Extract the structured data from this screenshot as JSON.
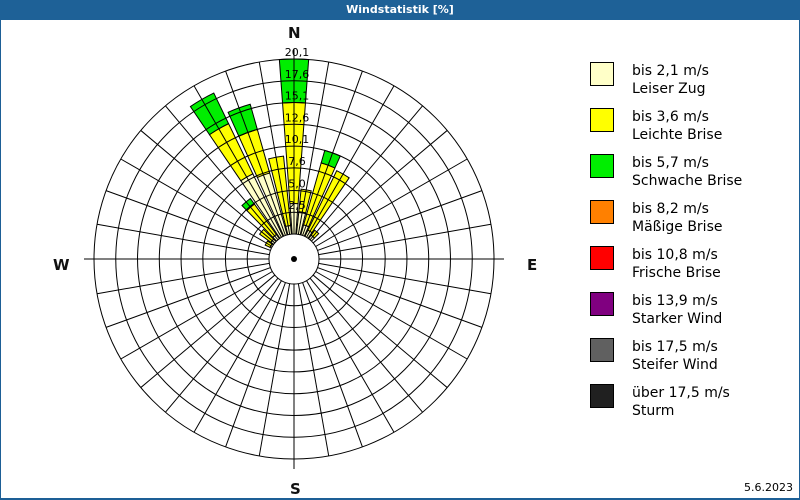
{
  "window": {
    "title": "Windstatistik [%]"
  },
  "compass": {
    "n": "N",
    "e": "E",
    "s": "S",
    "w": "W"
  },
  "date": "5.6.2023",
  "legend": [
    {
      "speed": "bis 2,1 m/s",
      "name": "Leiser Zug",
      "color": "#ffffc8"
    },
    {
      "speed": "bis 3,6 m/s",
      "name": "Leichte Brise",
      "color": "#ffff00"
    },
    {
      "speed": "bis 5,7 m/s",
      "name": "Schwache Brise",
      "color": "#00ee00"
    },
    {
      "speed": "bis 8,2 m/s",
      "name": "Mäßige Brise",
      "color": "#ff8000"
    },
    {
      "speed": "bis 10,8 m/s",
      "name": "Frische Brise",
      "color": "#ff0000"
    },
    {
      "speed": "bis 13,9 m/s",
      "name": "Starker Wind",
      "color": "#800080"
    },
    {
      "speed": "bis 17,5 m/s",
      "name": "Steifer Wind",
      "color": "#606060"
    },
    {
      "speed": "über 17,5 m/s",
      "name": "Sturm",
      "color": "#202020"
    }
  ],
  "chart_data": {
    "type": "wind-rose",
    "title": "Windstatistik [%]",
    "ring_labels": [
      "2,5",
      "5,0",
      "7,6",
      "10,1",
      "12,6",
      "15,1",
      "17,6",
      "20,1"
    ],
    "ring_values": [
      2.5,
      5.0,
      7.6,
      10.1,
      12.6,
      15.1,
      17.6,
      20.1
    ],
    "max": 20.1,
    "directions_deg": 36,
    "series_names": [
      "bis 2,1 m/s",
      "bis 3,6 m/s",
      "bis 5,7 m/s",
      "bis 8,2 m/s",
      "bis 10,8 m/s",
      "bis 13,9 m/s",
      "bis 17,5 m/s",
      "über 17,5 m/s"
    ],
    "sectors": [
      {
        "dir": 0,
        "cumulative": [
          3.5,
          15.1,
          20.1
        ]
      },
      {
        "dir": 10,
        "cumulative": [
          2.6,
          5.2,
          5.2
        ]
      },
      {
        "dir": 20,
        "cumulative": [
          1.2,
          8.6,
          10.1
        ]
      },
      {
        "dir": 30,
        "cumulative": [
          0.8,
          8.4,
          8.4
        ]
      },
      {
        "dir": 40,
        "cumulative": [
          0.5,
          1.2,
          1.2
        ]
      },
      {
        "dir": 340,
        "cumulative": [
          7.4,
          12.6,
          15.6
        ]
      },
      {
        "dir": 330,
        "cumulative": [
          8.0,
          14.4,
          18.3
        ]
      },
      {
        "dir": 320,
        "cumulative": [
          0.6,
          4.9,
          5.7
        ]
      },
      {
        "dir": 310,
        "cumulative": [
          0.4,
          2.0,
          2.0
        ]
      },
      {
        "dir": 300,
        "cumulative": [
          0.2,
          0.8,
          0.8
        ]
      },
      {
        "dir": 350,
        "cumulative": [
          1.0,
          9.0,
          9.0
        ]
      }
    ]
  }
}
